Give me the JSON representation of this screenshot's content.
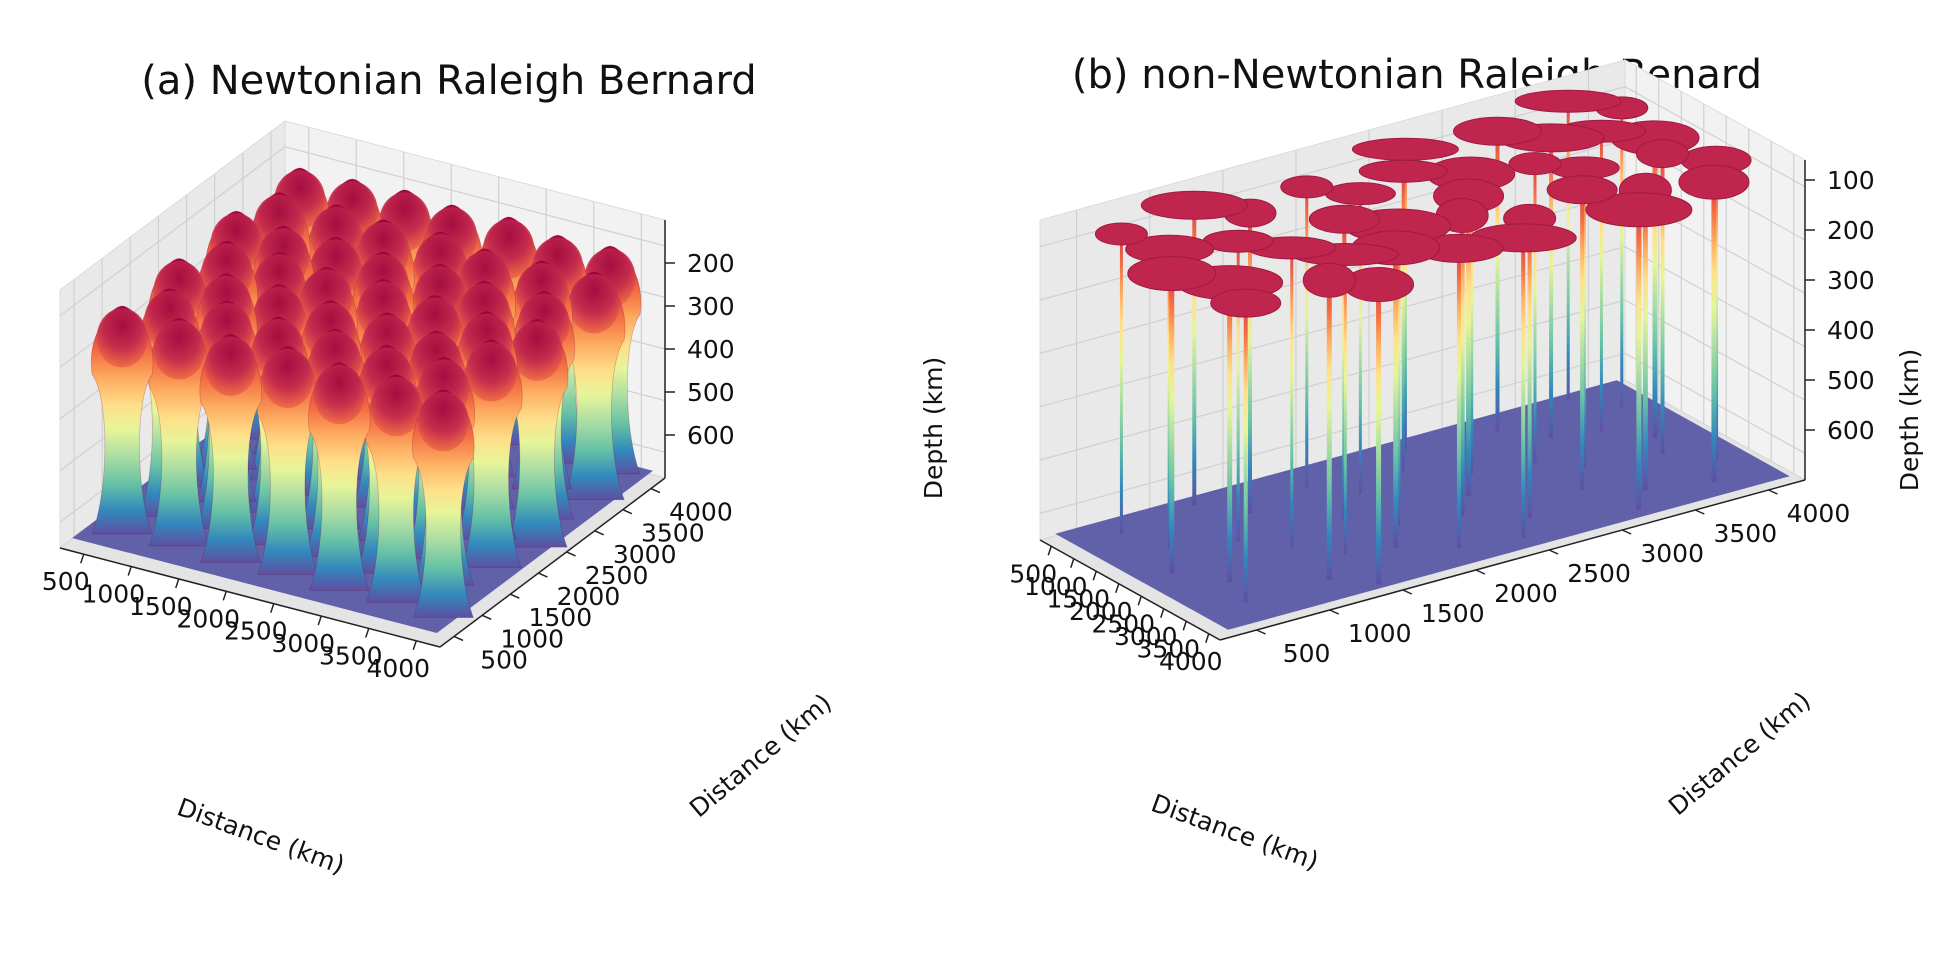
{
  "chart_data": [
    {
      "type": "surface3d",
      "title": "(a) Newtonian Raleigh Bernard",
      "xlabel": "Distance (km)",
      "ylabel": "Distance (km)",
      "zlabel": "Depth (km)",
      "x_ticks": [
        "500",
        "1000",
        "1500",
        "2000",
        "2500",
        "3000",
        "3500",
        "4000"
      ],
      "y_ticks": [
        "500",
        "1000",
        "1500",
        "2000",
        "2500",
        "3000",
        "3500",
        "4000"
      ],
      "z_ticks": [
        "200",
        "300",
        "400",
        "500",
        "600"
      ],
      "xlim": [
        0,
        4200
      ],
      "ylim": [
        0,
        4200
      ],
      "zlim": [
        700,
        100
      ],
      "colormap": "Spectral",
      "grid": true,
      "surface": {
        "description_values": {
          "plume_top_depth": 150,
          "base_depth": 680
        },
        "plumes": [
          [
            400,
            3800
          ],
          [
            950,
            3850
          ],
          [
            1500,
            3900
          ],
          [
            2050,
            3850
          ],
          [
            2650,
            3900
          ],
          [
            3250,
            3800
          ],
          [
            3800,
            3850
          ],
          [
            500,
            3250
          ],
          [
            1100,
            3300
          ],
          [
            1650,
            3250
          ],
          [
            2250,
            3300
          ],
          [
            2800,
            3200
          ],
          [
            3400,
            3250
          ],
          [
            3950,
            3300
          ],
          [
            350,
            2700
          ],
          [
            900,
            2650
          ],
          [
            1450,
            2700
          ],
          [
            2000,
            2650
          ],
          [
            2600,
            2700
          ],
          [
            3150,
            2600
          ],
          [
            3750,
            2700
          ],
          [
            600,
            2100
          ],
          [
            1150,
            2150
          ],
          [
            1700,
            2100
          ],
          [
            2300,
            2150
          ],
          [
            2900,
            2100
          ],
          [
            3500,
            2050
          ],
          [
            4000,
            2150
          ],
          [
            400,
            1550
          ],
          [
            950,
            1500
          ],
          [
            1500,
            1550
          ],
          [
            2100,
            1500
          ],
          [
            2700,
            1550
          ],
          [
            3300,
            1450
          ],
          [
            3850,
            1550
          ],
          [
            650,
            950
          ],
          [
            1250,
            1000
          ],
          [
            1850,
            950
          ],
          [
            2450,
            1000
          ],
          [
            3050,
            950
          ],
          [
            3650,
            1000
          ],
          [
            450,
            400
          ],
          [
            1050,
            450
          ],
          [
            1650,
            400
          ],
          [
            2250,
            450
          ],
          [
            2850,
            400
          ],
          [
            3450,
            450
          ],
          [
            4000,
            400
          ]
        ]
      }
    },
    {
      "type": "surface3d",
      "title": "(b) non-Newtonian Raleigh Benard",
      "xlabel": "Distance (km)",
      "ylabel": "Distance (km)",
      "zlabel": "Depth (km)",
      "x_ticks": [
        "500",
        "1000",
        "1500",
        "2000",
        "2500",
        "3000",
        "3500",
        "4000"
      ],
      "y_ticks": [
        "500",
        "1000",
        "1500",
        "2000",
        "2500",
        "3000",
        "3500",
        "4000"
      ],
      "z_ticks": [
        "100",
        "200",
        "300",
        "400",
        "500",
        "600"
      ],
      "xlim": [
        0,
        4200
      ],
      "ylim": [
        0,
        4200
      ],
      "zlim": [
        700,
        60
      ],
      "colormap": "Spectral",
      "grid": true,
      "surface": {
        "description_values": {
          "cap_depth": 90,
          "base_depth": 690
        },
        "plumes": [
          [
            300,
            3700
          ],
          [
            900,
            3900
          ],
          [
            1400,
            3600
          ],
          [
            2000,
            3800
          ],
          [
            2500,
            3700
          ],
          [
            3100,
            3900
          ],
          [
            3700,
            3700
          ],
          [
            600,
            3100
          ],
          [
            1200,
            3300
          ],
          [
            1800,
            3000
          ],
          [
            2300,
            3200
          ],
          [
            2900,
            3000
          ],
          [
            3400,
            3300
          ],
          [
            3900,
            3100
          ],
          [
            400,
            2500
          ],
          [
            1000,
            2300
          ],
          [
            1600,
            2600
          ],
          [
            2200,
            2400
          ],
          [
            2700,
            2200
          ],
          [
            3300,
            2500
          ],
          [
            3800,
            2300
          ],
          [
            700,
            1700
          ],
          [
            1300,
            1900
          ],
          [
            1900,
            1600
          ],
          [
            2500,
            1800
          ],
          [
            3100,
            1600
          ],
          [
            3600,
            1900
          ],
          [
            350,
            1000
          ],
          [
            1000,
            1200
          ],
          [
            1700,
            900
          ],
          [
            2300,
            1100
          ],
          [
            2900,
            1300
          ],
          [
            3500,
            1000
          ],
          [
            4000,
            1200
          ],
          [
            600,
            400
          ],
          [
            1400,
            500
          ],
          [
            2100,
            300
          ],
          [
            2800,
            500
          ],
          [
            3500,
            400
          ]
        ]
      }
    }
  ]
}
